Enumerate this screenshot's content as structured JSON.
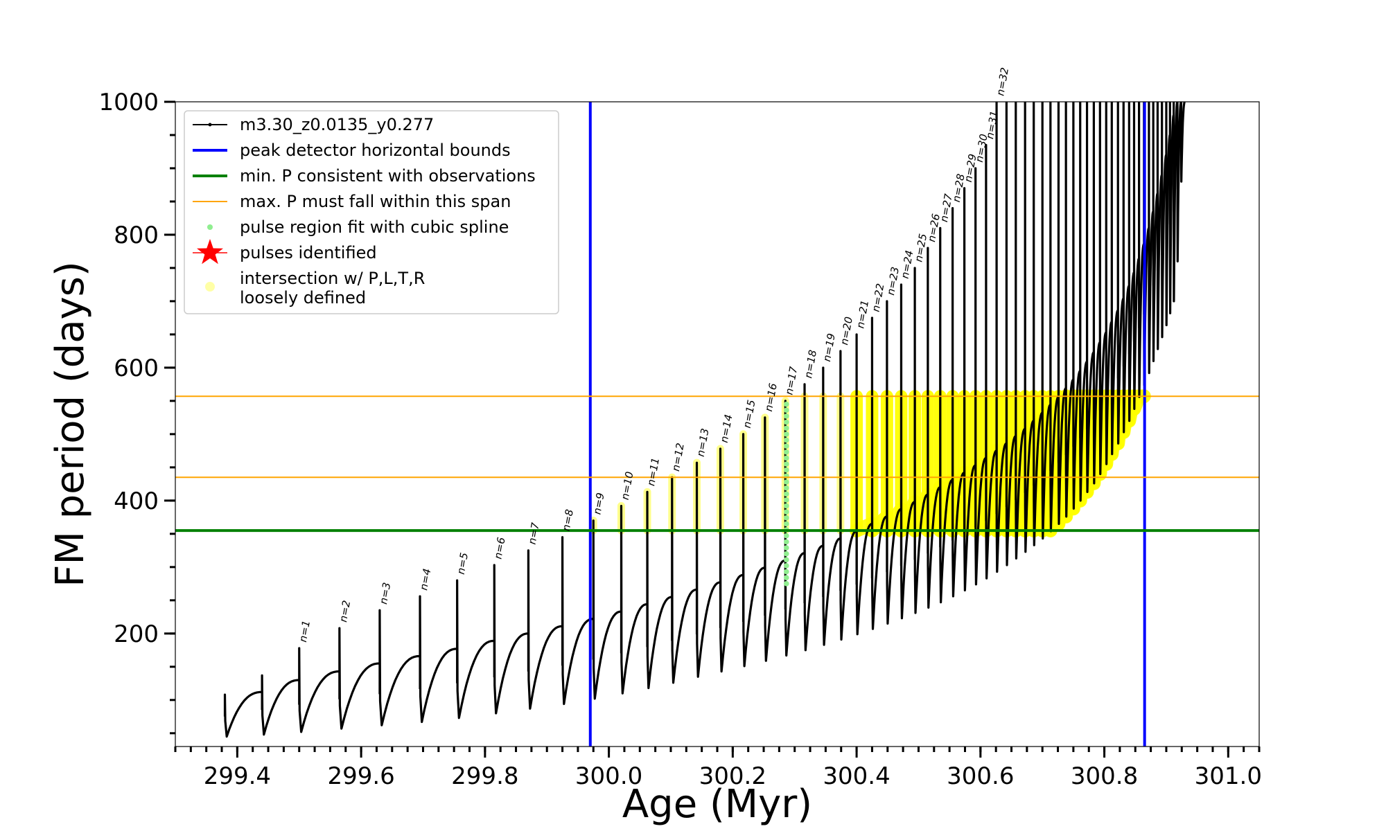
{
  "chart_data": {
    "type": "line",
    "title": "",
    "xlabel": "Age (Myr)",
    "ylabel": "FM period (days)",
    "xlim": [
      299.3,
      301.05
    ],
    "ylim": [
      30,
      1000
    ],
    "xticks": [
      299.4,
      299.6,
      299.8,
      300.0,
      300.2,
      300.4,
      300.6,
      300.8,
      301.0
    ],
    "xtick_labels": [
      "299.4",
      "299.6",
      "299.8",
      "300.0",
      "300.2",
      "300.4",
      "300.6",
      "300.8",
      "301.0"
    ],
    "yticks": [
      200,
      400,
      600,
      800,
      1000
    ],
    "ytick_labels": [
      "200",
      "400",
      "600",
      "800",
      "1000"
    ],
    "grid": false,
    "legend_position": "top-left",
    "series": [
      {
        "name": "m3.30_z0.0135_y0.277",
        "color": "#000000",
        "pulses": [
          {
            "age": 299.38,
            "peak": 108,
            "trough": 45,
            "end": 112
          },
          {
            "age": 299.44,
            "peak": 137,
            "trough": 48,
            "end": 130
          },
          {
            "age": 299.5,
            "peak": 178,
            "trough": 52,
            "end": 143,
            "label": "n=1"
          },
          {
            "age": 299.565,
            "peak": 208,
            "trough": 57,
            "end": 155,
            "label": "n=2"
          },
          {
            "age": 299.63,
            "peak": 235,
            "trough": 62,
            "end": 166,
            "label": "n=3"
          },
          {
            "age": 299.695,
            "peak": 256,
            "trough": 67,
            "end": 177,
            "label": "n=4"
          },
          {
            "age": 299.755,
            "peak": 280,
            "trough": 73,
            "end": 189,
            "label": "n=5"
          },
          {
            "age": 299.815,
            "peak": 303,
            "trough": 80,
            "end": 200,
            "label": "n=6"
          },
          {
            "age": 299.87,
            "peak": 325,
            "trough": 87,
            "end": 211,
            "label": "n=7"
          },
          {
            "age": 299.925,
            "peak": 345,
            "trough": 94,
            "end": 222,
            "label": "n=8"
          },
          {
            "age": 299.975,
            "peak": 370,
            "trough": 102,
            "end": 233,
            "label": "n=9"
          },
          {
            "age": 300.02,
            "peak": 392,
            "trough": 110,
            "end": 244,
            "label": "n=10"
          },
          {
            "age": 300.062,
            "peak": 413,
            "trough": 118,
            "end": 255,
            "label": "n=11"
          },
          {
            "age": 300.102,
            "peak": 435,
            "trough": 126,
            "end": 266,
            "label": "n=12"
          },
          {
            "age": 300.142,
            "peak": 457,
            "trough": 135,
            "end": 277,
            "label": "n=13"
          },
          {
            "age": 300.18,
            "peak": 478,
            "trough": 143,
            "end": 288,
            "label": "n=14"
          },
          {
            "age": 300.217,
            "peak": 500,
            "trough": 151,
            "end": 299,
            "label": "n=15"
          },
          {
            "age": 300.252,
            "peak": 525,
            "trough": 159,
            "end": 310,
            "label": "n=16"
          },
          {
            "age": 300.285,
            "peak": 550,
            "trough": 167,
            "end": 321,
            "label": "n=17"
          },
          {
            "age": 300.316,
            "peak": 575,
            "trough": 175,
            "end": 332,
            "label": "n=18"
          },
          {
            "age": 300.346,
            "peak": 600,
            "trough": 183,
            "end": 343,
            "label": "n=19"
          },
          {
            "age": 300.374,
            "peak": 625,
            "trough": 191,
            "end": 354,
            "label": "n=20"
          },
          {
            "age": 300.4,
            "peak": 650,
            "trough": 199,
            "end": 365,
            "label": "n=21"
          },
          {
            "age": 300.425,
            "peak": 675,
            "trough": 207,
            "end": 376,
            "label": "n=22"
          },
          {
            "age": 300.449,
            "peak": 700,
            "trough": 215,
            "end": 387,
            "label": "n=23"
          },
          {
            "age": 300.472,
            "peak": 725,
            "trough": 223,
            "end": 398,
            "label": "n=24"
          },
          {
            "age": 300.494,
            "peak": 750,
            "trough": 231,
            "end": 409,
            "label": "n=25"
          },
          {
            "age": 300.515,
            "peak": 780,
            "trough": 239,
            "end": 420,
            "label": "n=26"
          },
          {
            "age": 300.535,
            "peak": 810,
            "trough": 247,
            "end": 431,
            "label": "n=27"
          },
          {
            "age": 300.555,
            "peak": 840,
            "trough": 256,
            "end": 442,
            "label": "n=28"
          },
          {
            "age": 300.574,
            "peak": 870,
            "trough": 265,
            "end": 453,
            "label": "n=29"
          },
          {
            "age": 300.592,
            "peak": 900,
            "trough": 274,
            "end": 464,
            "label": "n=30"
          },
          {
            "age": 300.609,
            "peak": 935,
            "trough": 283,
            "end": 475,
            "label": "n=31"
          },
          {
            "age": 300.626,
            "peak": 1000,
            "trough": 293,
            "end": 486,
            "label": "n=32"
          },
          {
            "age": 300.642,
            "peak": 1000,
            "trough": 303,
            "end": 497
          },
          {
            "age": 300.657,
            "peak": 1000,
            "trough": 313,
            "end": 508
          },
          {
            "age": 300.672,
            "peak": 1000,
            "trough": 323,
            "end": 520
          },
          {
            "age": 300.686,
            "peak": 1000,
            "trough": 333,
            "end": 532
          },
          {
            "age": 300.7,
            "peak": 1000,
            "trough": 343,
            "end": 544
          },
          {
            "age": 300.713,
            "peak": 1000,
            "trough": 354,
            "end": 556
          },
          {
            "age": 300.726,
            "peak": 1000,
            "trough": 365,
            "end": 569
          },
          {
            "age": 300.738,
            "peak": 1000,
            "trough": 376,
            "end": 582
          },
          {
            "age": 300.75,
            "peak": 1000,
            "trough": 388,
            "end": 595
          },
          {
            "age": 300.761,
            "peak": 1000,
            "trough": 400,
            "end": 609
          },
          {
            "age": 300.772,
            "peak": 1000,
            "trough": 413,
            "end": 623
          },
          {
            "age": 300.783,
            "peak": 1000,
            "trough": 426,
            "end": 638
          },
          {
            "age": 300.793,
            "peak": 1000,
            "trough": 440,
            "end": 653
          },
          {
            "age": 300.803,
            "peak": 1000,
            "trough": 455,
            "end": 669
          },
          {
            "age": 300.812,
            "peak": 1000,
            "trough": 470,
            "end": 686
          },
          {
            "age": 300.822,
            "peak": 1000,
            "trough": 486,
            "end": 704
          },
          {
            "age": 300.831,
            "peak": 1000,
            "trough": 503,
            "end": 723
          },
          {
            "age": 300.84,
            "peak": 1000,
            "trough": 520,
            "end": 743
          },
          {
            "age": 300.848,
            "peak": 1000,
            "trough": 538,
            "end": 764
          },
          {
            "age": 300.856,
            "peak": 1000,
            "trough": 556,
            "end": 786
          },
          {
            "age": 300.864,
            "peak": 1000,
            "trough": 574,
            "end": 810
          },
          {
            "age": 300.872,
            "peak": 1000,
            "trough": 592,
            "end": 835
          },
          {
            "age": 300.879,
            "peak": 1000,
            "trough": 610,
            "end": 862
          },
          {
            "age": 300.886,
            "peak": 1000,
            "trough": 628,
            "end": 890
          },
          {
            "age": 300.893,
            "peak": 1000,
            "trough": 646,
            "end": 920
          },
          {
            "age": 300.9,
            "peak": 1000,
            "trough": 664,
            "end": 950
          },
          {
            "age": 300.906,
            "peak": 1000,
            "trough": 682,
            "end": 980
          },
          {
            "age": 300.912,
            "peak": 1000,
            "trough": 700,
            "end": 1000
          },
          {
            "age": 300.918,
            "peak": 1000,
            "trough": 760,
            "end": 1000
          },
          {
            "age": 300.924,
            "peak": 1000,
            "trough": 880,
            "end": 1000
          }
        ]
      },
      {
        "name": "peak detector horizontal bounds",
        "color": "#0000ff",
        "x": [
          299.97,
          300.865
        ]
      },
      {
        "name": "min. P consistent with observations",
        "color": "#008000",
        "y": [
          355
        ]
      },
      {
        "name": "max. P must fall within this span",
        "color": "#ffa500",
        "y": [
          435,
          557
        ]
      },
      {
        "name": "pulse region fit with cubic spline",
        "color": "#90ee90",
        "x": [
          300.285
        ],
        "y_range": [
          275,
          550
        ]
      },
      {
        "name": "pulses identified",
        "color": "#ff0000"
      },
      {
        "name": "intersection w/ P,L,T,R\nloosely defined",
        "color": "#ffff00",
        "label_lines": [
          "intersection w/ P,L,T,R",
          "loosely defined"
        ]
      }
    ]
  }
}
